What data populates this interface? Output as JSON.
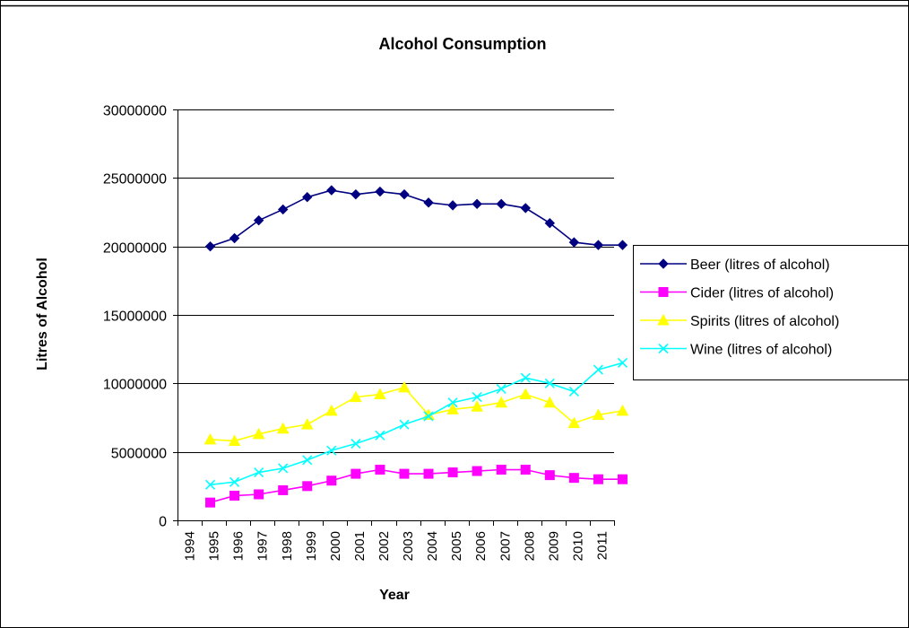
{
  "chart_data": {
    "type": "line",
    "title": "Alcohol Consumption",
    "xlabel": "Year",
    "ylabel": "Litres of Alcohol",
    "x_tick_labels": [
      "1994",
      "1995",
      "1996",
      "1997",
      "1998",
      "1999",
      "2000",
      "2001",
      "2002",
      "2003",
      "2004",
      "2005",
      "2006",
      "2007",
      "2008",
      "2009",
      "2010",
      "2011"
    ],
    "y_tick_labels": [
      "0",
      "5000000",
      "10000000",
      "15000000",
      "20000000",
      "25000000",
      "30000000"
    ],
    "ylim": [
      0,
      30000000
    ],
    "y_ticks": [
      0,
      5000000,
      10000000,
      15000000,
      20000000,
      25000000,
      30000000
    ],
    "grid": "horizontal",
    "legend_position": "right",
    "series": [
      {
        "name": "Beer  (litres of alcohol)",
        "color": "#000080",
        "marker": "diamond",
        "values": [
          20000000,
          20600000,
          21900000,
          22700000,
          23600000,
          24100000,
          23800000,
          24000000,
          23800000,
          23200000,
          23000000,
          23100000,
          23100000,
          22800000,
          21700000,
          20300000,
          20100000,
          20100000
        ]
      },
      {
        "name": "Cider (litres of alcohol)",
        "color": "#ff00ff",
        "marker": "square",
        "values": [
          1300000,
          1800000,
          1900000,
          2200000,
          2500000,
          2900000,
          3400000,
          3700000,
          3400000,
          3400000,
          3500000,
          3600000,
          3700000,
          3700000,
          3300000,
          3100000,
          3000000,
          3000000
        ]
      },
      {
        "name": "Spirits (litres of alcohol)",
        "color": "#ffff00",
        "marker": "triangle",
        "values": [
          5900000,
          5800000,
          6300000,
          6700000,
          7000000,
          8000000,
          9000000,
          9200000,
          9700000,
          7700000,
          8100000,
          8300000,
          8600000,
          9200000,
          8600000,
          7100000,
          7700000,
          8000000
        ]
      },
      {
        "name": "Wine  (litres of alcohol)",
        "color": "#00ffff",
        "marker": "x",
        "values": [
          2600000,
          2800000,
          3500000,
          3800000,
          4400000,
          5100000,
          5600000,
          6200000,
          7000000,
          7600000,
          8600000,
          9000000,
          9600000,
          10400000,
          10000000,
          9400000,
          11000000,
          11500000
        ]
      }
    ]
  }
}
